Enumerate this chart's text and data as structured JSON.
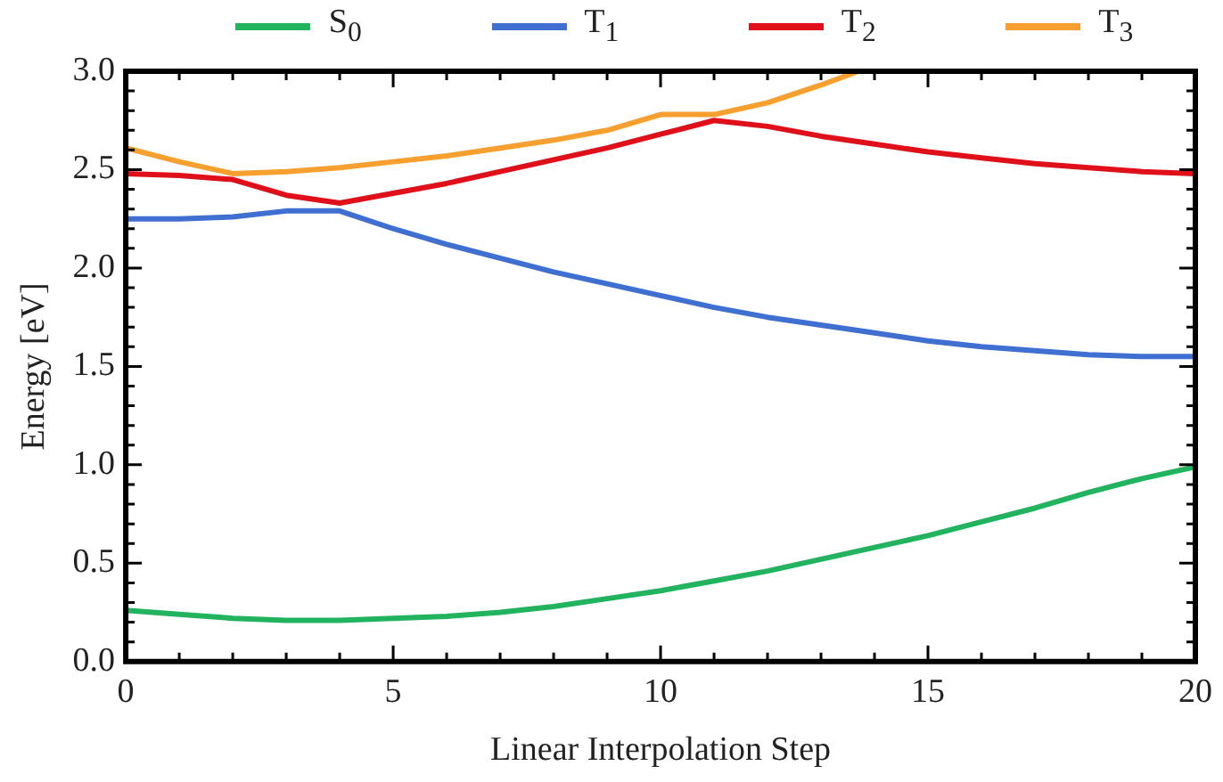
{
  "chart_data": {
    "type": "line",
    "xlabel": "Linear Interpolation Step",
    "ylabel": "Energy [eV]",
    "x": [
      0,
      1,
      2,
      3,
      4,
      5,
      6,
      7,
      8,
      9,
      10,
      11,
      12,
      13,
      14,
      15,
      16,
      17,
      18,
      19,
      20
    ],
    "series": [
      {
        "name": "S$_{0}$",
        "color": "#22b35e",
        "values": [
          0.26,
          0.24,
          0.22,
          0.21,
          0.21,
          0.22,
          0.23,
          0.25,
          0.28,
          0.32,
          0.36,
          0.41,
          0.46,
          0.52,
          0.58,
          0.64,
          0.71,
          0.78,
          0.86,
          0.93,
          0.99
        ]
      },
      {
        "name": "T$_{1}$",
        "color": "#3f6fd1",
        "values": [
          2.25,
          2.25,
          2.26,
          2.29,
          2.29,
          2.2,
          2.12,
          2.05,
          1.98,
          1.92,
          1.86,
          1.8,
          1.75,
          1.71,
          1.67,
          1.63,
          1.6,
          1.58,
          1.56,
          1.55,
          1.55
        ]
      },
      {
        "name": "T$_{2}$",
        "color": "#e0101a",
        "values": [
          2.48,
          2.47,
          2.45,
          2.37,
          2.33,
          2.38,
          2.43,
          2.49,
          2.55,
          2.61,
          2.68,
          2.75,
          2.72,
          2.67,
          2.63,
          2.59,
          2.56,
          2.53,
          2.51,
          2.49,
          2.48
        ]
      },
      {
        "name": "T$_{3}$",
        "color": "#f7a030",
        "x": [
          0,
          1,
          2,
          3,
          4,
          5,
          6,
          7,
          8,
          9,
          10,
          11,
          12,
          13,
          13.7
        ],
        "values": [
          2.61,
          2.54,
          2.48,
          2.49,
          2.51,
          2.54,
          2.57,
          2.61,
          2.65,
          2.7,
          2.78,
          2.78,
          2.84,
          2.93,
          3.0
        ]
      }
    ],
    "xlim": [
      0,
      20
    ],
    "xticks": [
      0,
      {
        "value": 1,
        "label": null
      },
      {
        "value": 2,
        "label": null
      },
      {
        "value": 3,
        "label": null
      },
      {
        "value": 4,
        "label": null
      },
      5,
      {
        "value": 6,
        "label": null
      },
      {
        "value": 7,
        "label": null
      },
      {
        "value": 8,
        "label": null
      },
      {
        "value": 9,
        "label": null
      },
      10,
      {
        "value": 11,
        "label": null
      },
      {
        "value": 12,
        "label": null
      },
      {
        "value": 13,
        "label": null
      },
      {
        "value": 14,
        "label": null
      },
      15,
      {
        "value": 16,
        "label": null
      },
      {
        "value": 17,
        "label": null
      },
      {
        "value": 18,
        "label": null
      },
      {
        "value": 19,
        "label": null
      },
      20
    ],
    "ylim": [
      0,
      3
    ],
    "yticks": [
      {
        "value": 0,
        "label": "0.0"
      },
      {
        "value": 0.1,
        "label": null
      },
      {
        "value": 0.2,
        "label": null
      },
      {
        "value": 0.3,
        "label": null
      },
      {
        "value": 0.4,
        "label": null
      },
      {
        "value": 0.5,
        "label": "0.5"
      },
      {
        "value": 0.6,
        "label": null
      },
      {
        "value": 0.7,
        "label": null
      },
      {
        "value": 0.8,
        "label": null
      },
      {
        "value": 0.9,
        "label": null
      },
      {
        "value": 1,
        "label": "1.0"
      },
      {
        "value": 1.1,
        "label": null
      },
      {
        "value": 1.2,
        "label": null
      },
      {
        "value": 1.3,
        "label": null
      },
      {
        "value": 1.4,
        "label": null
      },
      {
        "value": 1.5,
        "label": "1.5"
      },
      {
        "value": 1.6,
        "label": null
      },
      {
        "value": 1.7,
        "label": null
      },
      {
        "value": 1.8,
        "label": null
      },
      {
        "value": 1.9,
        "label": null
      },
      {
        "value": 2,
        "label": "2.0"
      },
      {
        "value": 2.1,
        "label": null
      },
      {
        "value": 2.2,
        "label": null
      },
      {
        "value": 2.3,
        "label": null
      },
      {
        "value": 2.4,
        "label": null
      },
      {
        "value": 2.5,
        "label": "2.5"
      },
      {
        "value": 2.6,
        "label": null
      },
      {
        "value": 2.7,
        "label": null
      },
      {
        "value": 2.8,
        "label": null
      },
      {
        "value": 2.9,
        "label": null
      },
      {
        "value": 3,
        "label": "3.0"
      }
    ],
    "grid": false,
    "legend": "top",
    "marker": "none",
    "line_style": "solid"
  }
}
